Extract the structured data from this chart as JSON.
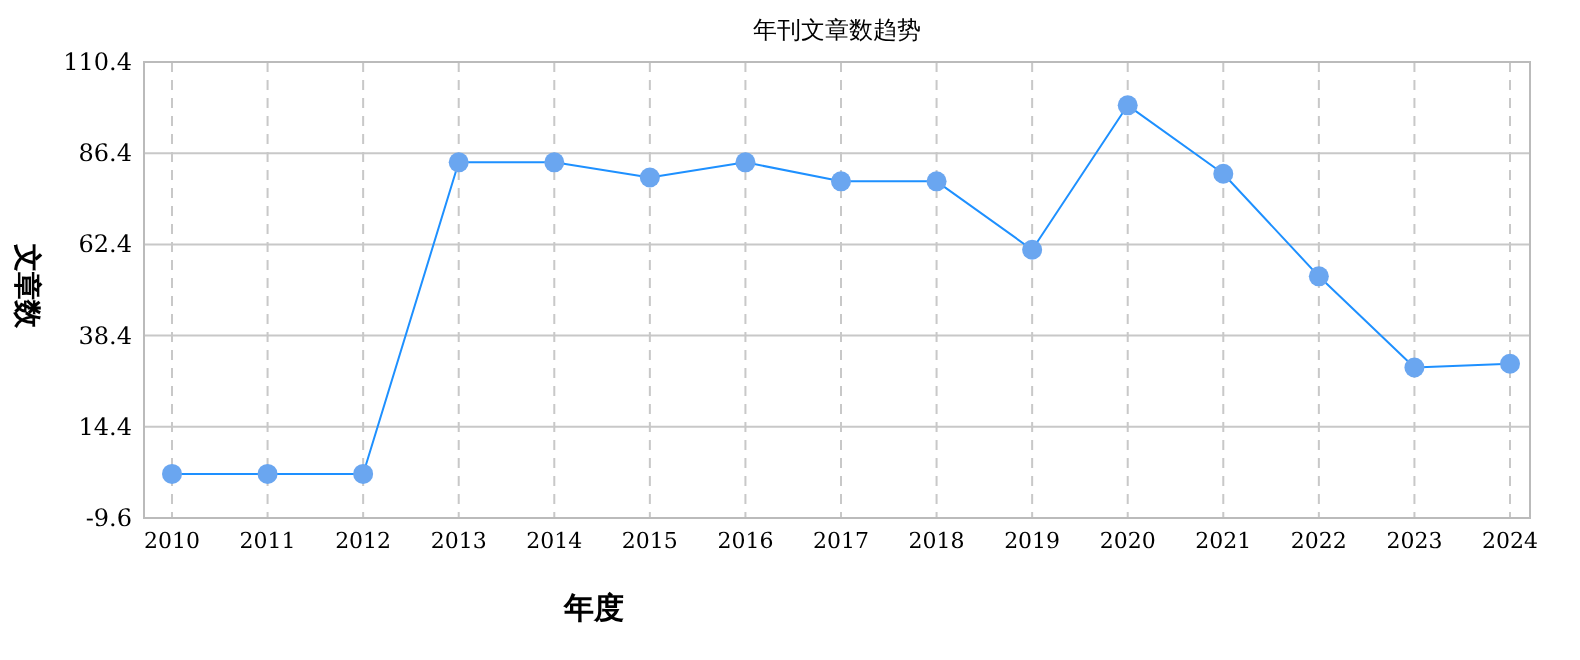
{
  "chart_data": {
    "type": "line",
    "title": "年刊文章数趋势",
    "xlabel": "年度",
    "ylabel": "文章数",
    "categories": [
      "2010",
      "2011",
      "2012",
      "2013",
      "2014",
      "2015",
      "2016",
      "2017",
      "2018",
      "2019",
      "2020",
      "2021",
      "2022",
      "2023",
      "2024"
    ],
    "series": [
      {
        "color": "#1e90ff",
        "values": [
          2,
          2,
          2,
          84,
          84,
          80,
          84,
          79,
          79,
          61,
          99,
          81,
          54,
          30,
          31
        ]
      }
    ],
    "ylim": [
      -9.6,
      110.4
    ],
    "yticks": [
      -9.6,
      14.4,
      38.4,
      62.4,
      86.4,
      110.4
    ],
    "grid": true,
    "marker": "circle",
    "line_style": "solid"
  }
}
